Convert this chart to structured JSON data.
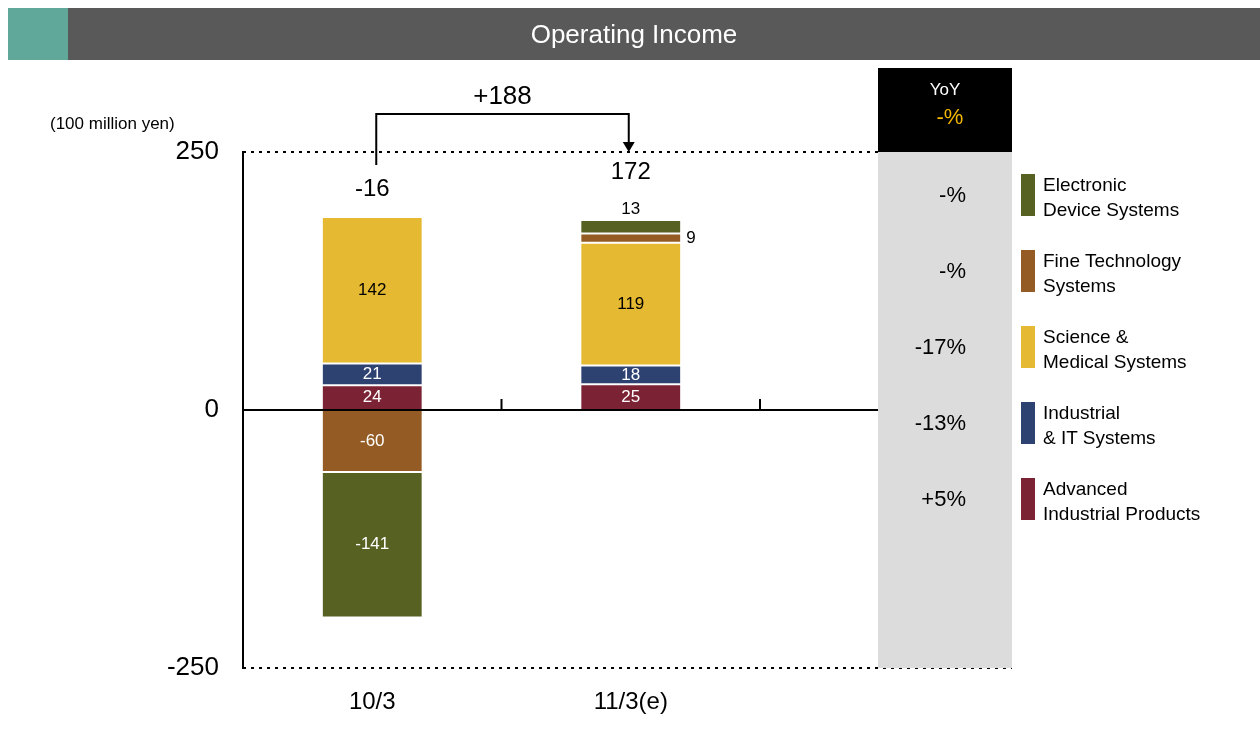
{
  "chart_data": {
    "type": "bar",
    "title": "Operating Income",
    "ylabel": "(100 million yen)",
    "categories": [
      "10/3",
      "11/3(e)"
    ],
    "stacked": true,
    "series": [
      {
        "name": "Advanced\nIndustrial Products",
        "color": "#7b2234",
        "values": [
          24,
          25
        ]
      },
      {
        "name": "Industrial\n& IT Systems",
        "color": "#2e4272",
        "values": [
          21,
          18
        ]
      },
      {
        "name": "Science &\nMedical Systems",
        "color": "#e5b932",
        "values": [
          142,
          119
        ]
      },
      {
        "name": "Fine Technology\nSystems",
        "color": "#945c24",
        "values": [
          -60,
          9
        ]
      },
      {
        "name": "Electronic\nDevice Systems",
        "color": "#566122",
        "values": [
          -141,
          13
        ]
      }
    ],
    "ylim": [
      -250,
      250
    ],
    "yticks": [
      -250,
      0,
      250
    ],
    "grid": "y",
    "legend": "right",
    "data_labels": true,
    "annotations": [
      "+188",
      "-16",
      "172",
      "YoY",
      "-%",
      "+5%",
      "-13%",
      "-17%",
      "-%",
      "-%"
    ]
  }
}
